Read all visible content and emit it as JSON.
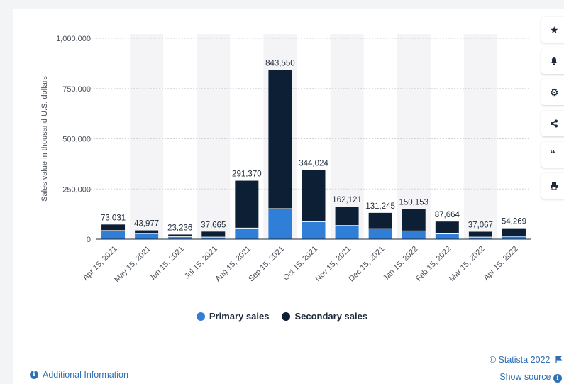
{
  "chart_data": {
    "type": "bar",
    "stacked": true,
    "ylabel": "Sales value in thousand U.S. dollars",
    "ylim": [
      0,
      1000000
    ],
    "yticks": [
      "0",
      "250,000",
      "500,000",
      "750,000",
      "1,000,000"
    ],
    "ytick_values": [
      0,
      250000,
      500000,
      750000,
      1000000
    ],
    "categories": [
      "Apr 15, 2021",
      "May 15, 2021",
      "Jun 15, 2021",
      "Jul 15, 2021",
      "Aug 15, 2021",
      "Sep 15, 2021",
      "Oct 15, 2021",
      "Nov 15, 2021",
      "Dec 15, 2021",
      "Jan 15, 2022",
      "Feb 15, 2022",
      "Mar 15, 2022",
      "Apr 15, 2022"
    ],
    "totals": [
      73031,
      43977,
      23236,
      37665,
      291370,
      843550,
      344024,
      162121,
      131245,
      150153,
      87664,
      37067,
      54269
    ],
    "total_labels": [
      "73,031",
      "43,977",
      "23,236",
      "37,665",
      "291,370",
      "843,550",
      "344,024",
      "162,121",
      "131,245",
      "150,153",
      "87,664",
      "37,067",
      "54,269"
    ],
    "series": [
      {
        "name": "Primary sales",
        "color": "#2f7ed8",
        "values": [
          43000,
          29000,
          12000,
          10000,
          55000,
          152000,
          87000,
          68000,
          52000,
          41000,
          30000,
          10000,
          14000
        ]
      },
      {
        "name": "Secondary sales",
        "color": "#0d1f35",
        "values": [
          30031,
          14977,
          11236,
          27665,
          236370,
          691550,
          257024,
          94121,
          79245,
          109153,
          57664,
          27067,
          40269
        ]
      }
    ],
    "grid": true,
    "legend_position": "bottom-center"
  },
  "colors": {
    "primary": "#2f7ed8",
    "secondary": "#0d1f35",
    "link": "#2e6fb5"
  },
  "toolbar": {
    "icons": [
      "star-icon",
      "bell-icon",
      "gear-icon",
      "share-icon",
      "quote-icon",
      "print-icon"
    ]
  },
  "footer": {
    "copyright": "© Statista 2022",
    "show_source": "Show source",
    "additional_info": "Additional Information"
  }
}
